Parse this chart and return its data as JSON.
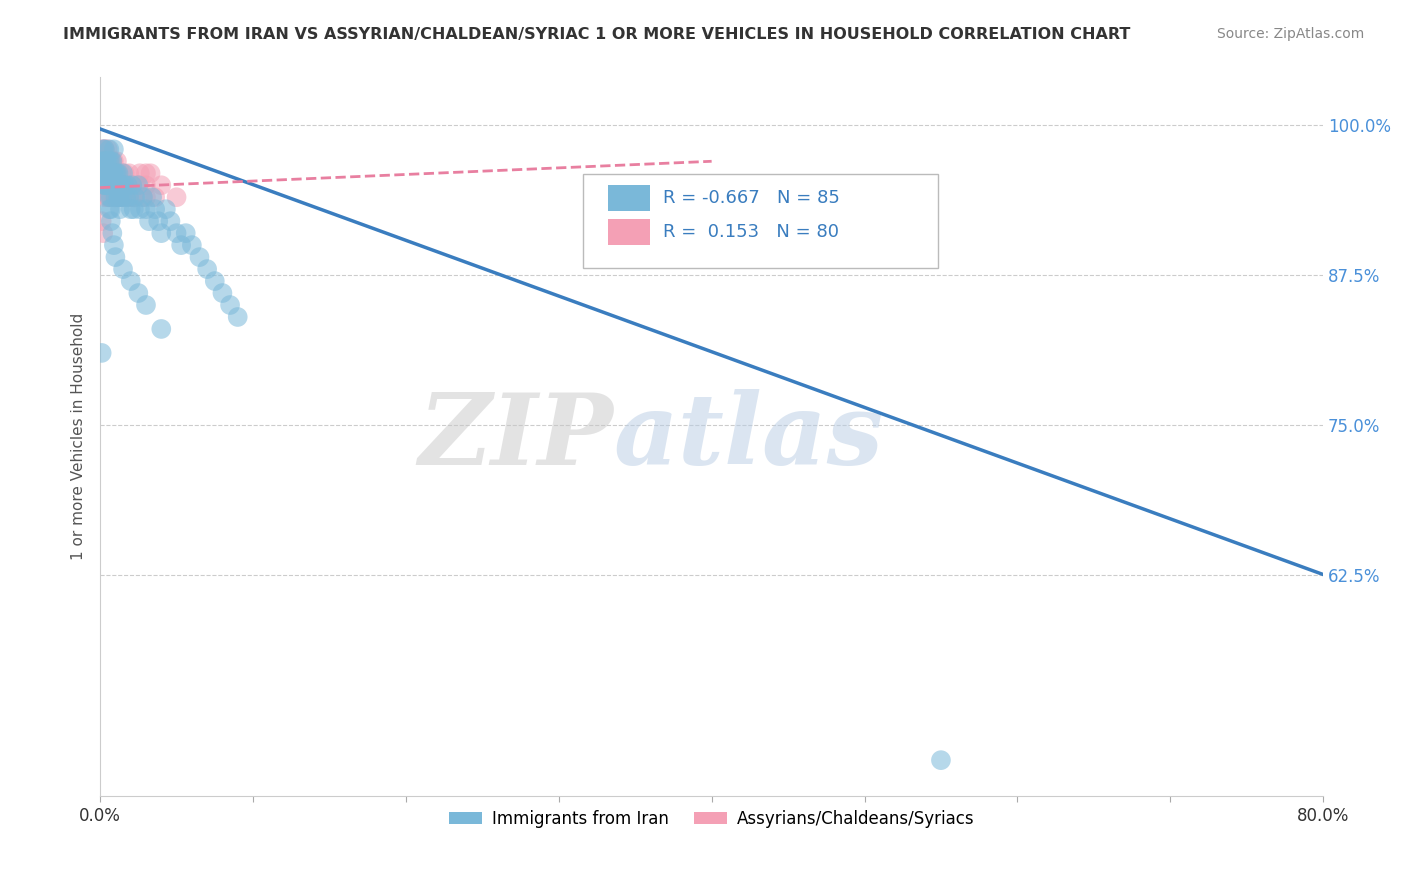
{
  "title": "IMMIGRANTS FROM IRAN VS ASSYRIAN/CHALDEAN/SYRIAC 1 OR MORE VEHICLES IN HOUSEHOLD CORRELATION CHART",
  "source": "Source: ZipAtlas.com",
  "ylabel": "1 or more Vehicles in Household",
  "xlim": [
    0.0,
    0.8
  ],
  "ylim": [
    0.44,
    1.04
  ],
  "ytick_labels": [
    "62.5%",
    "75.0%",
    "87.5%",
    "100.0%"
  ],
  "ytick_values": [
    0.625,
    0.75,
    0.875,
    1.0
  ],
  "blue_R": -0.667,
  "blue_N": 85,
  "pink_R": 0.153,
  "pink_N": 80,
  "blue_color": "#7ab8d9",
  "pink_color": "#f4a0b5",
  "blue_line_color": "#3a7dbf",
  "pink_line_color": "#e87fa0",
  "legend_label_blue": "Immigrants from Iran",
  "legend_label_pink": "Assyrians/Chaldeans/Syriacs",
  "watermark_zip": "ZIP",
  "watermark_atlas": "atlas",
  "background_color": "#ffffff",
  "grid_color": "#cccccc",
  "blue_scatter_x": [
    0.001,
    0.002,
    0.002,
    0.003,
    0.003,
    0.004,
    0.004,
    0.005,
    0.005,
    0.006,
    0.006,
    0.007,
    0.007,
    0.008,
    0.008,
    0.009,
    0.01,
    0.01,
    0.011,
    0.011,
    0.012,
    0.012,
    0.013,
    0.013,
    0.014,
    0.015,
    0.015,
    0.016,
    0.017,
    0.018,
    0.019,
    0.02,
    0.021,
    0.022,
    0.023,
    0.025,
    0.026,
    0.028,
    0.03,
    0.032,
    0.034,
    0.036,
    0.038,
    0.04,
    0.043,
    0.046,
    0.05,
    0.053,
    0.056,
    0.06,
    0.065,
    0.07,
    0.075,
    0.08,
    0.085,
    0.09,
    0.01,
    0.011,
    0.012,
    0.013,
    0.003,
    0.004,
    0.005,
    0.006,
    0.007,
    0.008,
    0.009,
    0.002,
    0.003,
    0.004,
    0.006,
    0.007,
    0.008,
    0.009,
    0.01,
    0.015,
    0.02,
    0.025,
    0.03,
    0.04,
    0.005,
    0.006,
    0.007,
    0.55,
    0.001
  ],
  "blue_scatter_y": [
    0.97,
    0.96,
    0.98,
    0.95,
    0.97,
    0.96,
    0.95,
    0.97,
    0.96,
    0.95,
    0.97,
    0.96,
    0.94,
    0.97,
    0.95,
    0.96,
    0.95,
    0.94,
    0.96,
    0.95,
    0.94,
    0.96,
    0.95,
    0.94,
    0.95,
    0.96,
    0.94,
    0.95,
    0.94,
    0.95,
    0.94,
    0.93,
    0.95,
    0.93,
    0.94,
    0.95,
    0.93,
    0.94,
    0.93,
    0.92,
    0.94,
    0.93,
    0.92,
    0.91,
    0.93,
    0.92,
    0.91,
    0.9,
    0.91,
    0.9,
    0.89,
    0.88,
    0.87,
    0.86,
    0.85,
    0.84,
    0.96,
    0.95,
    0.94,
    0.93,
    0.98,
    0.97,
    0.96,
    0.98,
    0.97,
    0.96,
    0.98,
    0.97,
    0.95,
    0.96,
    0.93,
    0.92,
    0.91,
    0.9,
    0.89,
    0.88,
    0.87,
    0.86,
    0.85,
    0.83,
    0.95,
    0.94,
    0.93,
    0.47,
    0.81
  ],
  "pink_scatter_x": [
    0.001,
    0.001,
    0.002,
    0.002,
    0.003,
    0.003,
    0.004,
    0.004,
    0.005,
    0.005,
    0.006,
    0.006,
    0.007,
    0.007,
    0.008,
    0.008,
    0.009,
    0.009,
    0.01,
    0.01,
    0.011,
    0.011,
    0.012,
    0.012,
    0.013,
    0.014,
    0.015,
    0.016,
    0.017,
    0.018,
    0.019,
    0.02,
    0.021,
    0.022,
    0.024,
    0.026,
    0.028,
    0.03,
    0.033,
    0.036,
    0.003,
    0.004,
    0.005,
    0.006,
    0.007,
    0.008,
    0.009,
    0.002,
    0.003,
    0.004,
    0.001,
    0.002,
    0.003,
    0.004,
    0.005,
    0.006,
    0.007,
    0.008,
    0.009,
    0.01,
    0.002,
    0.003,
    0.001,
    0.002,
    0.003,
    0.004,
    0.005,
    0.006,
    0.01,
    0.012,
    0.015,
    0.018,
    0.022,
    0.026,
    0.03,
    0.001,
    0.002,
    0.03,
    0.04,
    0.05
  ],
  "pink_scatter_y": [
    0.97,
    0.96,
    0.97,
    0.95,
    0.96,
    0.95,
    0.97,
    0.96,
    0.97,
    0.95,
    0.96,
    0.94,
    0.97,
    0.95,
    0.96,
    0.95,
    0.97,
    0.94,
    0.96,
    0.95,
    0.97,
    0.94,
    0.96,
    0.95,
    0.94,
    0.96,
    0.95,
    0.96,
    0.94,
    0.95,
    0.96,
    0.94,
    0.95,
    0.94,
    0.95,
    0.96,
    0.94,
    0.95,
    0.96,
    0.94,
    0.98,
    0.97,
    0.98,
    0.97,
    0.96,
    0.97,
    0.95,
    0.97,
    0.96,
    0.95,
    0.98,
    0.97,
    0.98,
    0.97,
    0.96,
    0.97,
    0.96,
    0.97,
    0.95,
    0.96,
    0.95,
    0.94,
    0.96,
    0.95,
    0.97,
    0.95,
    0.94,
    0.95,
    0.94,
    0.95,
    0.94,
    0.95,
    0.94,
    0.95,
    0.94,
    0.92,
    0.91,
    0.96,
    0.95,
    0.94
  ],
  "blue_line_x0": 0.0,
  "blue_line_y0": 0.997,
  "blue_line_x1": 0.8,
  "blue_line_y1": 0.625,
  "pink_line_x0": 0.0,
  "pink_line_y0": 0.948,
  "pink_line_x1": 0.4,
  "pink_line_y1": 0.97
}
